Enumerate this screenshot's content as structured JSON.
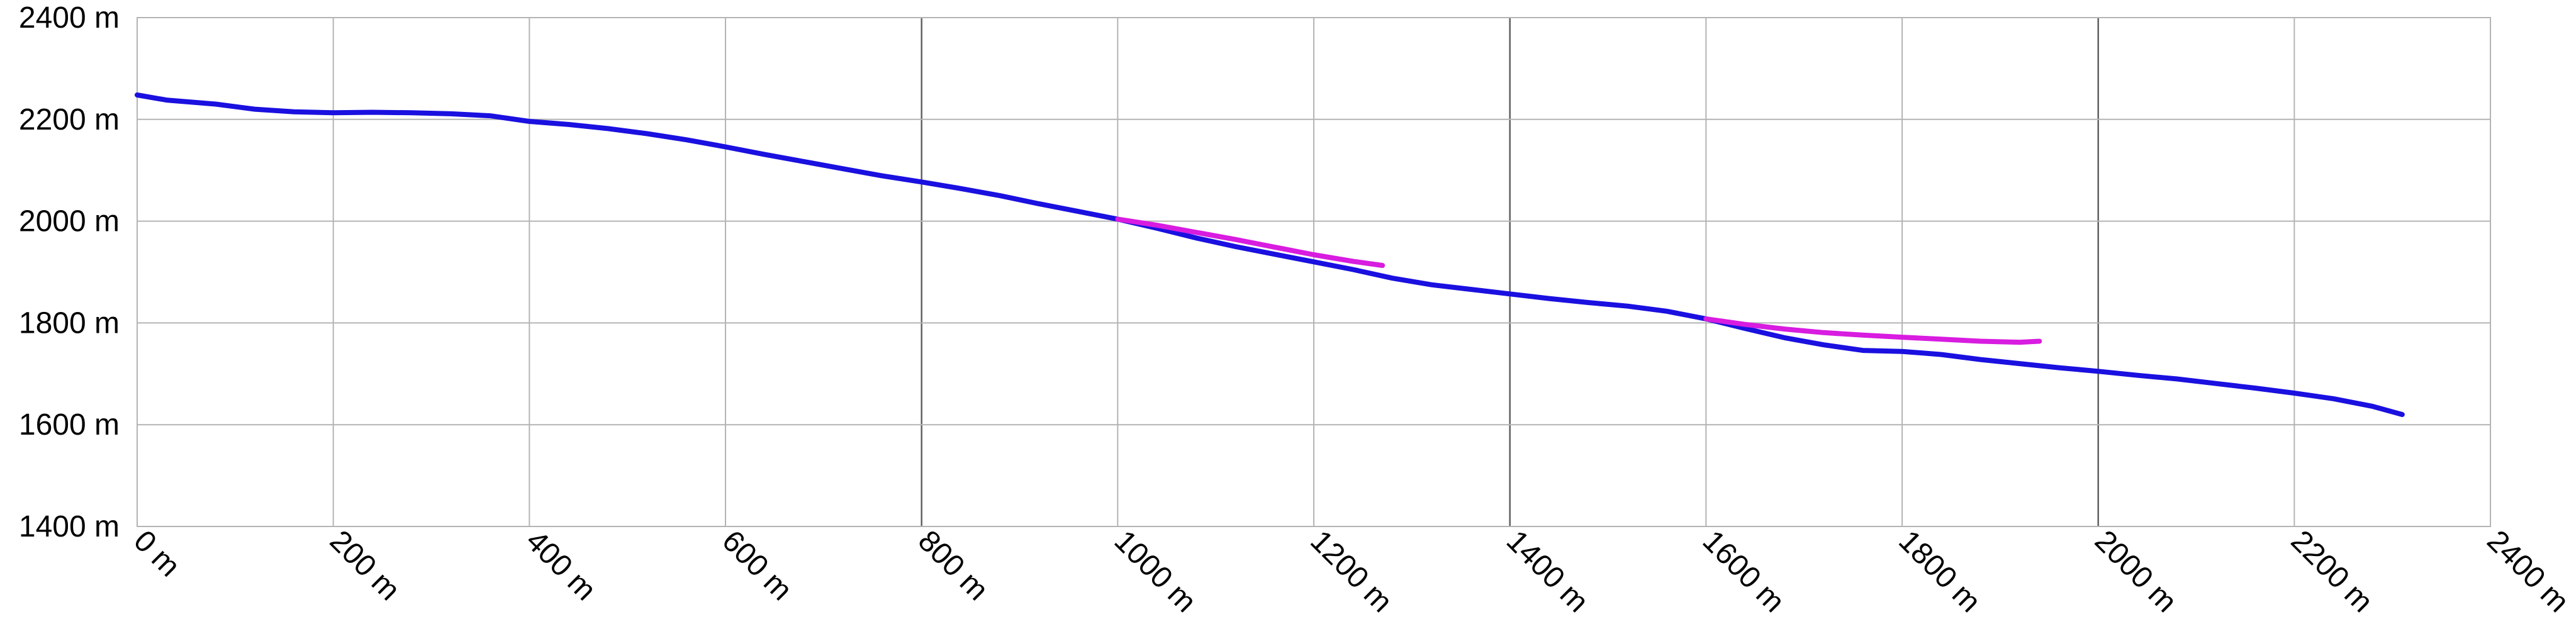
{
  "chart_data": {
    "type": "line",
    "title": "",
    "xlabel": "",
    "ylabel": "",
    "xlim": [
      0,
      2400
    ],
    "ylim": [
      1400,
      2400
    ],
    "x_ticks": [
      0,
      200,
      400,
      600,
      800,
      1000,
      1200,
      1400,
      1600,
      1800,
      2000,
      2200,
      2400
    ],
    "x_tick_labels": [
      "0 m",
      "200 m",
      "400 m",
      "600 m",
      "800 m",
      "1000 m",
      "1200 m",
      "1400 m",
      "1600 m",
      "1800 m",
      "2000 m",
      "2200 m",
      "2400 m"
    ],
    "y_ticks": [
      1400,
      1600,
      1800,
      2000,
      2200,
      2400
    ],
    "y_tick_labels": [
      "1400 m",
      "1600 m",
      "1800 m",
      "2000 m",
      "2200 m",
      "2400 m"
    ],
    "major_x_gridlines": [
      800,
      1400,
      2000
    ],
    "grid": true,
    "legend": "none",
    "series": [
      {
        "color": "#1a10e0",
        "x": [
          0,
          30,
          80,
          120,
          160,
          200,
          240,
          280,
          320,
          360,
          400,
          440,
          480,
          520,
          560,
          600,
          640,
          680,
          720,
          760,
          800,
          840,
          880,
          920,
          960,
          1000,
          1040,
          1080,
          1120,
          1160,
          1200,
          1240,
          1280,
          1320,
          1360,
          1400,
          1440,
          1480,
          1520,
          1560,
          1600,
          1640,
          1680,
          1720,
          1760,
          1800,
          1840,
          1880,
          1920,
          1960,
          2000,
          2040,
          2080,
          2120,
          2160,
          2200,
          2240,
          2280,
          2310
        ],
        "y": [
          2248,
          2238,
          2230,
          2220,
          2215,
          2213,
          2214,
          2213,
          2211,
          2207,
          2196,
          2190,
          2182,
          2172,
          2160,
          2146,
          2131,
          2117,
          2103,
          2089,
          2077,
          2064,
          2050,
          2034,
          2019,
          2004,
          1986,
          1967,
          1950,
          1935,
          1920,
          1905,
          1888,
          1875,
          1866,
          1857,
          1848,
          1840,
          1833,
          1823,
          1808,
          1789,
          1771,
          1757,
          1746,
          1744,
          1738,
          1728,
          1720,
          1712,
          1705,
          1697,
          1690,
          1681,
          1672,
          1662,
          1651,
          1636,
          1620
        ]
      },
      {
        "color": "#d81ce0",
        "x": [
          1000,
          1040,
          1080,
          1120,
          1160,
          1200,
          1240,
          1270
        ],
        "y": [
          2004,
          1992,
          1978,
          1964,
          1949,
          1934,
          1921,
          1913
        ]
      },
      {
        "color": "#d81ce0",
        "x": [
          1600,
          1640,
          1680,
          1720,
          1760,
          1800,
          1840,
          1880,
          1920,
          1940
        ],
        "y": [
          1808,
          1797,
          1788,
          1781,
          1776,
          1772,
          1768,
          1764,
          1762,
          1764
        ]
      }
    ]
  }
}
